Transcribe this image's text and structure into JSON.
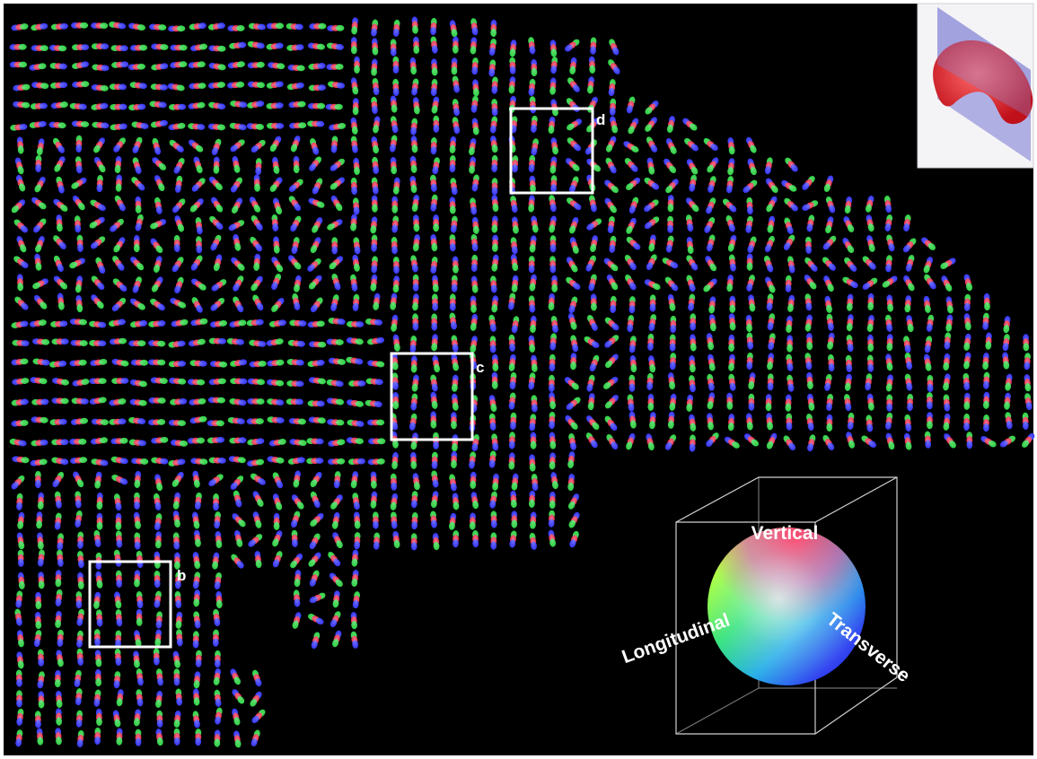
{
  "figure": {
    "background_color": "#000000",
    "border_color": "#ffffff",
    "glyph_palette": [
      "#e8294a",
      "#3b3bf5",
      "#35d24a"
    ],
    "regions": [
      {
        "label": "b"
      },
      {
        "label": "c"
      },
      {
        "label": "d"
      }
    ],
    "legend": {
      "vertical": "Vertical",
      "longitudinal": "Longitudinal",
      "transverse": "Transverse"
    },
    "inset": {
      "shape_color": "#e8202a",
      "plane_color": "#8a8ad8",
      "background": "#f4f4f6"
    }
  }
}
